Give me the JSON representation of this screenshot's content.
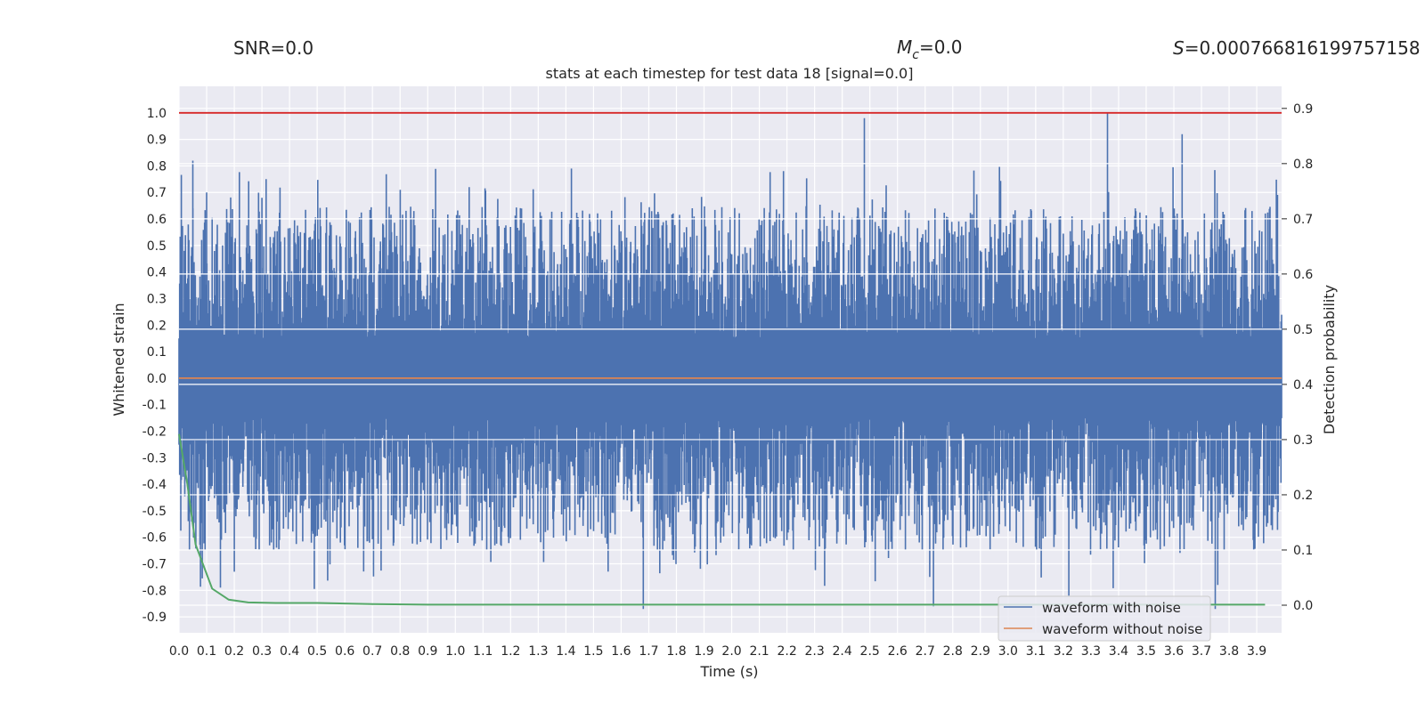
{
  "header": {
    "snr": "SNR=0.0",
    "mc_symbol": "M",
    "mc_sub": "c",
    "mc_value": "=0.0",
    "s_symbol": "S",
    "s_value": "=0.000766816199757158"
  },
  "chart_data": {
    "type": "line",
    "title": "stats at each timestep for test data 18 [signal=0.0]",
    "xlabel": "Time (s)",
    "ylabel": "Whitened strain",
    "ylabel_right": "Detection probability",
    "xlim": [
      0.0,
      3.99
    ],
    "ylim": [
      -0.96,
      1.1
    ],
    "ylim_right": [
      -0.05,
      0.94
    ],
    "x_ticks": [
      "0.0",
      "0.1",
      "0.2",
      "0.3",
      "0.4",
      "0.5",
      "0.6",
      "0.7",
      "0.8",
      "0.9",
      "1.0",
      "1.1",
      "1.2",
      "1.3",
      "1.4",
      "1.5",
      "1.6",
      "1.7",
      "1.8",
      "1.9",
      "2.0",
      "2.1",
      "2.2",
      "2.3",
      "2.4",
      "2.5",
      "2.6",
      "2.7",
      "2.8",
      "2.9",
      "3.0",
      "3.1",
      "3.2",
      "3.3",
      "3.4",
      "3.5",
      "3.6",
      "3.7",
      "3.8",
      "3.9"
    ],
    "y_ticks": [
      "1.0",
      "0.9",
      "0.8",
      "0.7",
      "0.6",
      "0.5",
      "0.4",
      "0.3",
      "0.2",
      "0.1",
      "0.0",
      "-0.1",
      "-0.2",
      "-0.3",
      "-0.4",
      "-0.5",
      "-0.6",
      "-0.7",
      "-0.8",
      "-0.9"
    ],
    "y_ticks_right": [
      "0.9",
      "0.8",
      "0.7",
      "0.6",
      "0.5",
      "0.4",
      "0.3",
      "0.2",
      "0.1",
      "0.0"
    ],
    "threshold": {
      "value": 1.0,
      "color": "#d62728"
    },
    "series": [
      {
        "name": "waveform with noise",
        "color": "#4c72b0",
        "axis": "left",
        "peaks": [
          {
            "x": 0.05,
            "y": 0.82
          },
          {
            "x": 0.1,
            "y": 0.7
          },
          {
            "x": 0.3,
            "y": 0.68
          },
          {
            "x": 0.85,
            "y": 0.63
          },
          {
            "x": 1.05,
            "y": 0.72
          },
          {
            "x": 1.42,
            "y": 0.79
          },
          {
            "x": 2.48,
            "y": 0.98
          },
          {
            "x": 3.36,
            "y": 1.0
          },
          {
            "x": 3.63,
            "y": 0.92
          },
          {
            "x": 1.68,
            "y": -0.87
          },
          {
            "x": 3.22,
            "y": -0.82
          },
          {
            "x": 3.75,
            "y": -0.87
          },
          {
            "x": 2.73,
            "y": -0.86
          },
          {
            "x": 0.15,
            "y": -0.79
          },
          {
            "x": 0.2,
            "y": -0.73
          }
        ],
        "typical_amplitude": 0.5
      },
      {
        "name": "waveform without noise",
        "color": "#dd8452",
        "axis": "left",
        "x": [
          0.0,
          3.99
        ],
        "y": [
          0.0,
          0.0
        ]
      },
      {
        "name": "detection probability",
        "color": "#55a868",
        "axis": "right",
        "x": [
          0.0,
          0.03,
          0.06,
          0.12,
          0.18,
          0.25,
          0.35,
          0.5,
          0.7,
          0.9,
          1.5,
          2.5,
          3.5,
          3.93
        ],
        "y": [
          0.31,
          0.22,
          0.11,
          0.03,
          0.01,
          0.005,
          0.004,
          0.004,
          0.002,
          0.001,
          0.001,
          0.001,
          0.001,
          0.001
        ]
      }
    ],
    "legend": {
      "location": "lower right",
      "entries": [
        {
          "label": "waveform with noise",
          "color": "#4c72b0"
        },
        {
          "label": "waveform without noise",
          "color": "#dd8452"
        }
      ]
    }
  }
}
